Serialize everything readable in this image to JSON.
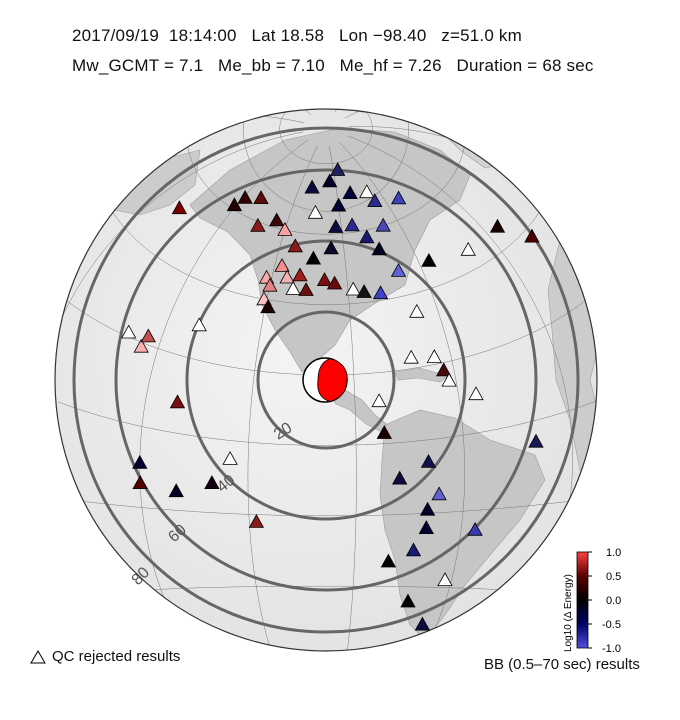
{
  "header": {
    "line1": "2017/09/19  18:14:00   Lat 18.58   Lon −98.40   z=51.0 km",
    "line2": "Mw_GCMT = 7.1   Me_bb = 7.10   Me_hf = 7.26   Duration = 68 sec"
  },
  "map": {
    "projection": "azimuthal equidistant",
    "distance_rings": [
      "20",
      "40",
      "60",
      "80"
    ],
    "ring_color": "#666666",
    "ocean_color": "#eeeeee",
    "land_color": "#c4c4c4"
  },
  "stations": [
    {
      "lon": -151,
      "lat": 61,
      "color": "#220000"
    },
    {
      "lon": -149,
      "lat": 64,
      "color": "#300303"
    },
    {
      "lon": -141,
      "lat": 66,
      "color": "#5e0a0a"
    },
    {
      "lon": -134,
      "lat": 59,
      "color": "#8b1a1a"
    },
    {
      "lon": -126,
      "lat": 62,
      "color": "#3a0808"
    },
    {
      "lon": -120,
      "lat": 60,
      "color": "#f7a0a0"
    },
    {
      "lon": -113,
      "lat": 56,
      "color": "#8b1a1a"
    },
    {
      "lon": -117,
      "lat": 50,
      "color": "#f48c8c"
    },
    {
      "lon": -122,
      "lat": 46,
      "color": "#fba8a8"
    },
    {
      "lon": -120,
      "lat": 44,
      "color": "#e38080"
    },
    {
      "lon": -114,
      "lat": 47,
      "color": "#f1b1b1"
    },
    {
      "lon": -121,
      "lat": 40,
      "color": "#fcc0c0"
    },
    {
      "lon": -119,
      "lat": 38,
      "color": "#1a0000"
    },
    {
      "lon": -109,
      "lat": 48,
      "color": "#a01f1f"
    },
    {
      "lon": -111,
      "lat": 44,
      "color": "#ffffff"
    },
    {
      "lon": -106,
      "lat": 44,
      "color": "#6e0d0d"
    },
    {
      "lon": -99,
      "lat": 47,
      "color": "#7a1010"
    },
    {
      "lon": -95,
      "lat": 46,
      "color": "#6a0a0a"
    },
    {
      "lon": -104,
      "lat": 53,
      "color": "#000000"
    },
    {
      "lon": -96,
      "lat": 56,
      "color": "#0a0a2a"
    },
    {
      "lon": -88,
      "lat": 44,
      "color": "#ffffff"
    },
    {
      "lon": -84,
      "lat": 43,
      "color": "#141414"
    },
    {
      "lon": -78,
      "lat": 42,
      "color": "#4040c8"
    },
    {
      "lon": -74,
      "lat": 54,
      "color": "#000020"
    },
    {
      "lon": -69,
      "lat": 47,
      "color": "#6060d8"
    },
    {
      "lon": -95,
      "lat": 75,
      "color": "#00002a"
    },
    {
      "lon": -110,
      "lat": 73,
      "color": "#0a0a40"
    },
    {
      "lon": -105,
      "lat": 66,
      "color": "#ffffff"
    },
    {
      "lon": -90,
      "lat": 68,
      "color": "#000033"
    },
    {
      "lon": -80,
      "lat": 71,
      "color": "#00003a"
    },
    {
      "lon": -93,
      "lat": 62,
      "color": "#0c0c40"
    },
    {
      "lon": -84,
      "lat": 62,
      "color": "#2a2a90"
    },
    {
      "lon": -78,
      "lat": 58,
      "color": "#1a1a70"
    },
    {
      "lon": -68,
      "lat": 60,
      "color": "#4a4ab8"
    },
    {
      "lon": -85,
      "lat": 78,
      "color": "#202060"
    },
    {
      "lon": -68,
      "lat": 70,
      "color": "#ffffff"
    },
    {
      "lon": -66,
      "lat": 67,
      "color": "#2a2a88"
    },
    {
      "lon": -52,
      "lat": 65,
      "color": "#4040b8"
    },
    {
      "lon": -56,
      "lat": 47,
      "color": "#000000"
    },
    {
      "lon": -40,
      "lat": 45,
      "color": "#ffffff"
    },
    {
      "lon": -25,
      "lat": 45,
      "color": "#1a0000"
    },
    {
      "lon": -18,
      "lat": 38,
      "color": "#4a0000"
    },
    {
      "lon": -67,
      "lat": 35,
      "color": "#ffffff"
    },
    {
      "lon": -72,
      "lat": 23,
      "color": "#ffffff"
    },
    {
      "lon": -65,
      "lat": 22,
      "color": "#ffffff"
    },
    {
      "lon": -63,
      "lat": 18,
      "color": "#4a0a0a"
    },
    {
      "lon": -62,
      "lat": 15,
      "color": "#ffffff"
    },
    {
      "lon": -83,
      "lat": 12,
      "color": "#ffffff"
    },
    {
      "lon": -55,
      "lat": 10,
      "color": "#ffffff"
    },
    {
      "lon": -82,
      "lat": 3,
      "color": "#1a0000"
    },
    {
      "lon": -40,
      "lat": -5,
      "color": "#1a1a5a"
    },
    {
      "lon": -70,
      "lat": -6,
      "color": "#12124a"
    },
    {
      "lon": -78,
      "lat": -10,
      "color": "#0c0c40"
    },
    {
      "lon": -67,
      "lat": -15,
      "color": "#6060d0"
    },
    {
      "lon": -70,
      "lat": -19,
      "color": "#00002a"
    },
    {
      "lon": -70,
      "lat": -24,
      "color": "#000033"
    },
    {
      "lon": -56,
      "lat": -25,
      "color": "#3a3ab0"
    },
    {
      "lon": -73,
      "lat": -30,
      "color": "#1a1a70"
    },
    {
      "lon": -80,
      "lat": -33,
      "color": "#000000"
    },
    {
      "lon": -62,
      "lat": -38,
      "color": "#ffffff"
    },
    {
      "lon": -72,
      "lat": -44,
      "color": "#000000"
    },
    {
      "lon": -65,
      "lat": -50,
      "color": "#0c0c40"
    },
    {
      "lon": -140,
      "lat": 29,
      "color": "#ffffff"
    },
    {
      "lon": -155,
      "lat": 19,
      "color": "#fbb0b0"
    },
    {
      "lon": -154,
      "lat": 22,
      "color": "#c05050"
    },
    {
      "lon": -160,
      "lat": 21,
      "color": "#ffffff"
    },
    {
      "lon": -170,
      "lat": 52,
      "color": "#7a0000"
    },
    {
      "lon": -141,
      "lat": 8,
      "color": "#7a1010"
    },
    {
      "lon": -125,
      "lat": -5,
      "color": "#ffffff"
    },
    {
      "lon": -150,
      "lat": -9,
      "color": "#000030"
    },
    {
      "lon": -150,
      "lat": -14,
      "color": "#550000"
    },
    {
      "lon": -140,
      "lat": -15,
      "color": "#000020"
    },
    {
      "lon": -130,
      "lat": -12,
      "color": "#100010"
    },
    {
      "lon": -118,
      "lat": -22,
      "color": "#8b1a1a"
    }
  ],
  "colorbar": {
    "label": "Log10 (Δ Energy)",
    "ticks": [
      "1.0",
      "0.5",
      "0.0",
      "-0.5",
      "-1.0"
    ],
    "min": -1.0,
    "max": 1.0,
    "colors": [
      "#5050e0",
      "#000066",
      "#000000",
      "#5a0000",
      "#ff4040"
    ]
  },
  "legend": {
    "qc_label": "QC rejected results",
    "bb_label": "BB (0.5–70 sec) results"
  }
}
